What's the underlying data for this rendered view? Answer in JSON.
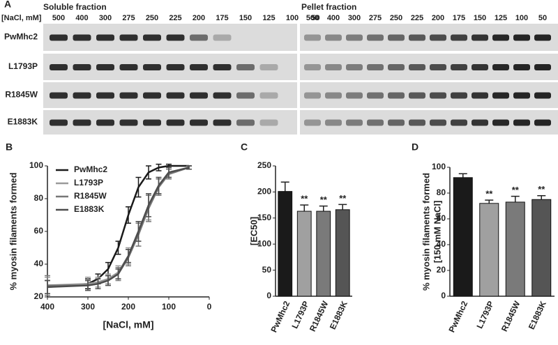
{
  "gel_panel": {
    "panel_label": "A",
    "axis_label": "[NaCl, mM]",
    "soluble_title": "Soluble fraction",
    "pellet_title": "Pellet fraction",
    "soluble_lanes": [
      "500",
      "400",
      "300",
      "275",
      "250",
      "225",
      "200",
      "175",
      "150",
      "125",
      "100",
      "50"
    ],
    "pellet_lanes": [
      "500",
      "400",
      "300",
      "275",
      "250",
      "225",
      "200",
      "175",
      "150",
      "125",
      "100",
      "50"
    ],
    "rows": [
      "PwMhc2",
      "L1793P",
      "R1845W",
      "E1883K"
    ]
  },
  "chart_data": [
    {
      "type": "line",
      "panel_label": "B",
      "x_label": "[NaCl, mM]",
      "y_label": "% myosin filaments formed",
      "x": [
        400,
        300,
        275,
        250,
        225,
        200,
        175,
        150,
        125,
        100,
        50
      ],
      "xlim": [
        400,
        0
      ],
      "xticks": [
        400,
        300,
        200,
        100,
        0
      ],
      "ylim": [
        20,
        100
      ],
      "yticks": [
        20,
        40,
        60,
        80,
        100
      ],
      "legend": "upper-left",
      "series": [
        {
          "name": "PwMhc2",
          "color": "#1a1a1a",
          "values": [
            26,
            28,
            31,
            37,
            50,
            70,
            87,
            96,
            99,
            100,
            100
          ],
          "errors": [
            4,
            3,
            3,
            4,
            4,
            5,
            6,
            4,
            2,
            1,
            0
          ]
        },
        {
          "name": "L1793P",
          "color": "#9a9a9a",
          "values": [
            27,
            28,
            29,
            31,
            35,
            45,
            60,
            75,
            88,
            96,
            99
          ],
          "errors": [
            5,
            4,
            3,
            3,
            4,
            5,
            6,
            8,
            5,
            3,
            1
          ]
        },
        {
          "name": "R1845W",
          "color": "#777777",
          "values": [
            27,
            27,
            28,
            30,
            34,
            44,
            58,
            74,
            87,
            95,
            99
          ],
          "errors": [
            6,
            3,
            3,
            3,
            4,
            5,
            7,
            8,
            5,
            3,
            1
          ]
        },
        {
          "name": "E1883K",
          "color": "#4d4d4d",
          "values": [
            26,
            27,
            28,
            30,
            34,
            45,
            60,
            76,
            88,
            96,
            99
          ],
          "errors": [
            4,
            3,
            3,
            3,
            3,
            4,
            6,
            7,
            5,
            3,
            1
          ]
        }
      ]
    },
    {
      "type": "bar",
      "panel_label": "C",
      "y_label": "[EC50]",
      "categories": [
        "PwMhc2",
        "L1793P",
        "R1845W",
        "E1883K"
      ],
      "values": [
        201,
        163,
        163,
        166
      ],
      "errors": [
        18,
        12,
        10,
        10
      ],
      "significance_labels": [
        null,
        "**",
        "**",
        "**"
      ],
      "colors": [
        "#1a1a1a",
        "#a0a0a0",
        "#7a7a7a",
        "#555555"
      ],
      "ylim": [
        0,
        250
      ],
      "yticks": [
        0,
        50,
        100,
        150,
        200,
        250
      ]
    },
    {
      "type": "bar",
      "panel_label": "D",
      "y_label": "% myosin filaments formed",
      "y_label_2": "[150 mM NaCl]",
      "categories": [
        "PwMhc2",
        "L1793P",
        "R1845W",
        "E1883K"
      ],
      "values": [
        92,
        72,
        73,
        75
      ],
      "errors": [
        3,
        2.5,
        4.5,
        3
      ],
      "significance_labels": [
        null,
        "**",
        "**",
        "**"
      ],
      "colors": [
        "#1a1a1a",
        "#a0a0a0",
        "#7a7a7a",
        "#555555"
      ],
      "ylim": [
        0,
        100
      ],
      "yticks": [
        0,
        20,
        40,
        60,
        80,
        100
      ]
    }
  ]
}
